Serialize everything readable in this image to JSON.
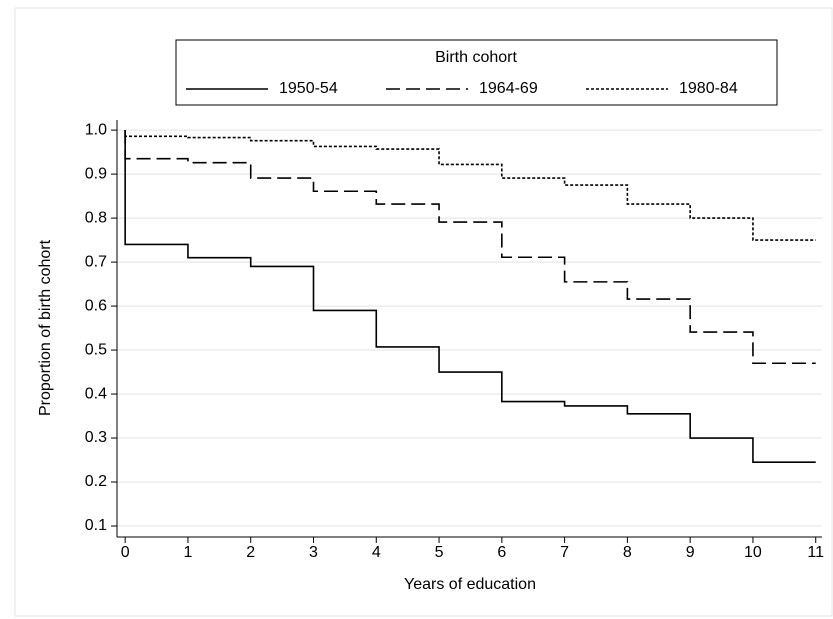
{
  "chart_data": {
    "type": "line",
    "step": "post",
    "x_label": "Years of education",
    "y_label": "Proportion of birth cohort",
    "legend_title": "Birth cohort",
    "legend": "top",
    "x": [
      0,
      0,
      1,
      2,
      3,
      4,
      5,
      6,
      7,
      8,
      9,
      10,
      11
    ],
    "series": [
      {
        "name": "1950-54",
        "color": "#000000",
        "dash": "none",
        "values": [
          1.0,
          0.74,
          0.71,
          0.69,
          0.59,
          0.507,
          0.45,
          0.383,
          0.373,
          0.355,
          0.3,
          0.245,
          0.245
        ]
      },
      {
        "name": "1964-69",
        "color": "#000000",
        "dash": "14 6",
        "values": [
          1.0,
          0.935,
          0.926,
          0.891,
          0.861,
          0.832,
          0.791,
          0.711,
          0.655,
          0.616,
          0.541,
          0.47,
          0.47
        ]
      },
      {
        "name": "1980-84",
        "color": "#000000",
        "dash": "3 2",
        "values": [
          1.0,
          0.986,
          0.983,
          0.976,
          0.963,
          0.957,
          0.922,
          0.891,
          0.875,
          0.832,
          0.8,
          0.75,
          0.75
        ]
      }
    ],
    "xlim": [
      -0.13,
      11.1
    ],
    "xticks": [
      0,
      1,
      2,
      3,
      4,
      5,
      6,
      7,
      8,
      9,
      10,
      11
    ],
    "ylim": [
      0.075,
      1.023
    ],
    "yticks": [
      {
        "value": 0.1,
        "label": "0.1"
      },
      {
        "value": 0.2,
        "label": "0.2"
      },
      {
        "value": 0.3,
        "label": "0.3"
      },
      {
        "value": 0.4,
        "label": "0.4"
      },
      {
        "value": 0.5,
        "label": "0.5"
      },
      {
        "value": 0.6,
        "label": "0.6"
      },
      {
        "value": 0.7,
        "label": "0.7"
      },
      {
        "value": 0.8,
        "label": "0.8"
      },
      {
        "value": 0.9,
        "label": "0.9"
      },
      {
        "value": 1.0,
        "label": "1.0"
      }
    ],
    "grid": true
  }
}
